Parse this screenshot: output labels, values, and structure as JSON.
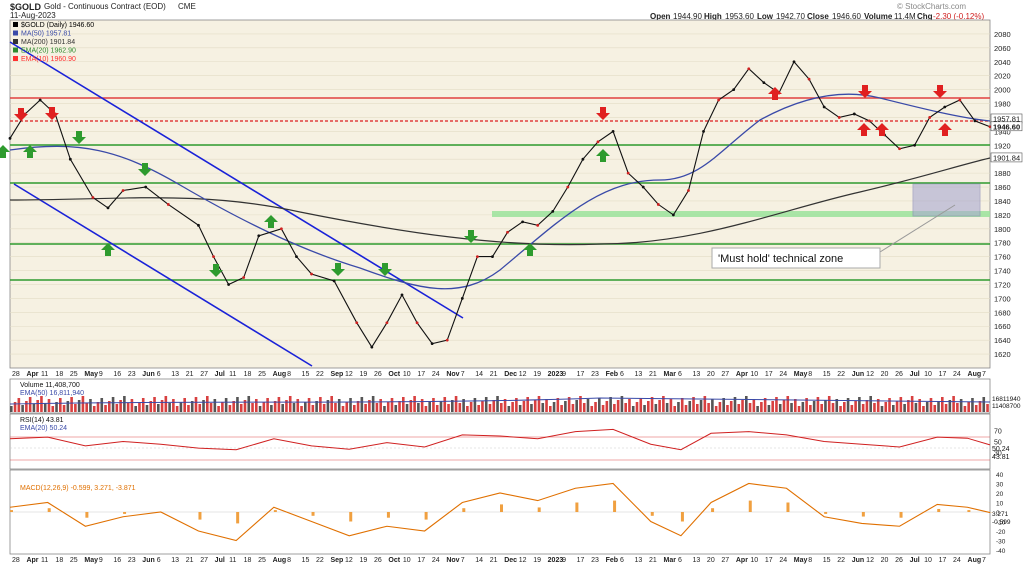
{
  "header": {
    "symbol": "$GOLD",
    "name": "Gold - Continuous Contract (EOD)",
    "exchange": "CME",
    "date": "11-Aug-2023",
    "watermark": "© StockCharts.com",
    "quote": {
      "open_label": "Open",
      "open": "1944.90",
      "high_label": "High",
      "high": "1953.60",
      "low_label": "Low",
      "low": "1942.70",
      "close_label": "Close",
      "close": "1946.60",
      "volume_label": "Volume",
      "volume": "11.4M",
      "chg_label": "Chg",
      "chg": "-2.30 (-0.12%)"
    }
  },
  "chart_data": {
    "type": "line",
    "title": "$GOLD (Daily) 1946.60",
    "y_range": [
      1600,
      2100
    ],
    "y_ticks": [
      1620,
      1640,
      1660,
      1680,
      1700,
      1720,
      1740,
      1760,
      1780,
      1800,
      1820,
      1840,
      1860,
      1880,
      1900,
      1920,
      1940,
      1960,
      1980,
      2000,
      2020,
      2040,
      2060,
      2080
    ],
    "x_labels": [
      "28",
      "Apr",
      "11",
      "18",
      "25",
      "May",
      "9",
      "16",
      "23",
      "Jun",
      "6",
      "13",
      "21",
      "27",
      "Jul",
      "11",
      "18",
      "25",
      "Aug",
      "8",
      "15",
      "22",
      "Sep",
      "12",
      "19",
      "26",
      "Oct",
      "10",
      "17",
      "24",
      "Nov",
      "7",
      "14",
      "21",
      "Dec",
      "12",
      "19",
      "2023",
      "9",
      "17",
      "23",
      "Feb",
      "6",
      "13",
      "21",
      "Mar",
      "6",
      "13",
      "20",
      "27",
      "Apr",
      "10",
      "17",
      "24",
      "May",
      "8",
      "15",
      "22",
      "Jun",
      "12",
      "20",
      "26",
      "Jul",
      "10",
      "17",
      "24",
      "Aug",
      "7"
    ],
    "legend": [
      {
        "label": "$GOLD (Daily) 1946.60",
        "color": "#000000"
      },
      {
        "label": "MA(50) 1957.81",
        "color": "#3a4aa8"
      },
      {
        "label": "MA(200) 1901.84",
        "color": "#333333"
      },
      {
        "label": "EMA(20) 1962.90",
        "color": "#2e8b2e"
      },
      {
        "label": "EMA(10) 1960.90",
        "color": "#ff3030"
      }
    ],
    "price_tags": [
      {
        "value": "1957.81",
        "price": 1957.81
      },
      {
        "value": "1946.60",
        "price": 1946.6
      },
      {
        "value": "1901.84",
        "price": 1901.84
      }
    ],
    "price_series": [
      {
        "t": 0,
        "v": 1930
      },
      {
        "t": 4,
        "v": 1965
      },
      {
        "t": 8,
        "v": 1985
      },
      {
        "t": 12,
        "v": 1965
      },
      {
        "t": 16,
        "v": 1900
      },
      {
        "t": 22,
        "v": 1845
      },
      {
        "t": 26,
        "v": 1830
      },
      {
        "t": 30,
        "v": 1855
      },
      {
        "t": 36,
        "v": 1860
      },
      {
        "t": 42,
        "v": 1835
      },
      {
        "t": 50,
        "v": 1805
      },
      {
        "t": 54,
        "v": 1760
      },
      {
        "t": 58,
        "v": 1720
      },
      {
        "t": 62,
        "v": 1730
      },
      {
        "t": 66,
        "v": 1790
      },
      {
        "t": 72,
        "v": 1800
      },
      {
        "t": 76,
        "v": 1760
      },
      {
        "t": 80,
        "v": 1735
      },
      {
        "t": 86,
        "v": 1725
      },
      {
        "t": 92,
        "v": 1665
      },
      {
        "t": 96,
        "v": 1630
      },
      {
        "t": 100,
        "v": 1665
      },
      {
        "t": 104,
        "v": 1705
      },
      {
        "t": 108,
        "v": 1665
      },
      {
        "t": 112,
        "v": 1635
      },
      {
        "t": 116,
        "v": 1640
      },
      {
        "t": 120,
        "v": 1700
      },
      {
        "t": 124,
        "v": 1760
      },
      {
        "t": 128,
        "v": 1760
      },
      {
        "t": 132,
        "v": 1795
      },
      {
        "t": 136,
        "v": 1810
      },
      {
        "t": 140,
        "v": 1805
      },
      {
        "t": 144,
        "v": 1825
      },
      {
        "t": 148,
        "v": 1860
      },
      {
        "t": 152,
        "v": 1900
      },
      {
        "t": 156,
        "v": 1925
      },
      {
        "t": 160,
        "v": 1940
      },
      {
        "t": 164,
        "v": 1880
      },
      {
        "t": 168,
        "v": 1860
      },
      {
        "t": 172,
        "v": 1835
      },
      {
        "t": 176,
        "v": 1820
      },
      {
        "t": 180,
        "v": 1855
      },
      {
        "t": 184,
        "v": 1940
      },
      {
        "t": 188,
        "v": 1985
      },
      {
        "t": 192,
        "v": 2000
      },
      {
        "t": 196,
        "v": 2030
      },
      {
        "t": 200,
        "v": 2010
      },
      {
        "t": 204,
        "v": 1995
      },
      {
        "t": 208,
        "v": 2040
      },
      {
        "t": 212,
        "v": 2015
      },
      {
        "t": 216,
        "v": 1975
      },
      {
        "t": 220,
        "v": 1960
      },
      {
        "t": 224,
        "v": 1965
      },
      {
        "t": 228,
        "v": 1955
      },
      {
        "t": 232,
        "v": 1935
      },
      {
        "t": 236,
        "v": 1915
      },
      {
        "t": 240,
        "v": 1920
      },
      {
        "t": 244,
        "v": 1960
      },
      {
        "t": 248,
        "v": 1975
      },
      {
        "t": 252,
        "v": 1985
      },
      {
        "t": 256,
        "v": 1955
      },
      {
        "t": 260,
        "v": 1946.6
      }
    ],
    "annotation": "'Must hold' technical zone",
    "volume_panel": {
      "legend": [
        "Volume 11,408,700",
        "EMA(50) 16,811,940"
      ],
      "tags": [
        "16811940",
        "11408700"
      ]
    },
    "rsi_panel": {
      "legend": [
        "RSI(14) 43.81",
        "EMA(20) 50.24"
      ],
      "y_ticks": [
        70,
        50,
        30
      ],
      "tags": [
        "50.24",
        "43.81"
      ],
      "series": [
        {
          "t": 0,
          "v": 55
        },
        {
          "t": 10,
          "v": 58
        },
        {
          "t": 20,
          "v": 42
        },
        {
          "t": 30,
          "v": 50
        },
        {
          "t": 40,
          "v": 45
        },
        {
          "t": 50,
          "v": 38
        },
        {
          "t": 60,
          "v": 35
        },
        {
          "t": 70,
          "v": 55
        },
        {
          "t": 80,
          "v": 42
        },
        {
          "t": 90,
          "v": 36
        },
        {
          "t": 100,
          "v": 48
        },
        {
          "t": 110,
          "v": 40
        },
        {
          "t": 120,
          "v": 62
        },
        {
          "t": 130,
          "v": 60
        },
        {
          "t": 140,
          "v": 55
        },
        {
          "t": 150,
          "v": 68
        },
        {
          "t": 160,
          "v": 72
        },
        {
          "t": 170,
          "v": 45
        },
        {
          "t": 178,
          "v": 35
        },
        {
          "t": 186,
          "v": 65
        },
        {
          "t": 196,
          "v": 68
        },
        {
          "t": 206,
          "v": 62
        },
        {
          "t": 216,
          "v": 50
        },
        {
          "t": 226,
          "v": 45
        },
        {
          "t": 236,
          "v": 40
        },
        {
          "t": 246,
          "v": 58
        },
        {
          "t": 254,
          "v": 56
        },
        {
          "t": 260,
          "v": 43.81
        }
      ]
    },
    "macd_panel": {
      "legend": [
        "MACD(12,26,9) -0.599, 3.271, -3.871"
      ],
      "y_ticks": [
        40,
        30,
        20,
        10,
        0,
        -10,
        -20,
        -30,
        -40
      ],
      "tags": [
        "3.271",
        "-0.599"
      ],
      "series": [
        {
          "t": 0,
          "v": 5
        },
        {
          "t": 10,
          "v": 10
        },
        {
          "t": 20,
          "v": -15
        },
        {
          "t": 30,
          "v": -5
        },
        {
          "t": 40,
          "v": 0
        },
        {
          "t": 50,
          "v": -20
        },
        {
          "t": 60,
          "v": -30
        },
        {
          "t": 70,
          "v": 5
        },
        {
          "t": 80,
          "v": -10
        },
        {
          "t": 90,
          "v": -25
        },
        {
          "t": 100,
          "v": -15
        },
        {
          "t": 110,
          "v": -20
        },
        {
          "t": 120,
          "v": 10
        },
        {
          "t": 130,
          "v": 20
        },
        {
          "t": 140,
          "v": 12
        },
        {
          "t": 150,
          "v": 25
        },
        {
          "t": 160,
          "v": 30
        },
        {
          "t": 170,
          "v": -10
        },
        {
          "t": 178,
          "v": -25
        },
        {
          "t": 186,
          "v": 10
        },
        {
          "t": 196,
          "v": 30
        },
        {
          "t": 206,
          "v": 25
        },
        {
          "t": 216,
          "v": -5
        },
        {
          "t": 226,
          "v": -12
        },
        {
          "t": 236,
          "v": -15
        },
        {
          "t": 246,
          "v": 8
        },
        {
          "t": 254,
          "v": 5
        },
        {
          "t": 260,
          "v": -0.599
        }
      ]
    }
  }
}
